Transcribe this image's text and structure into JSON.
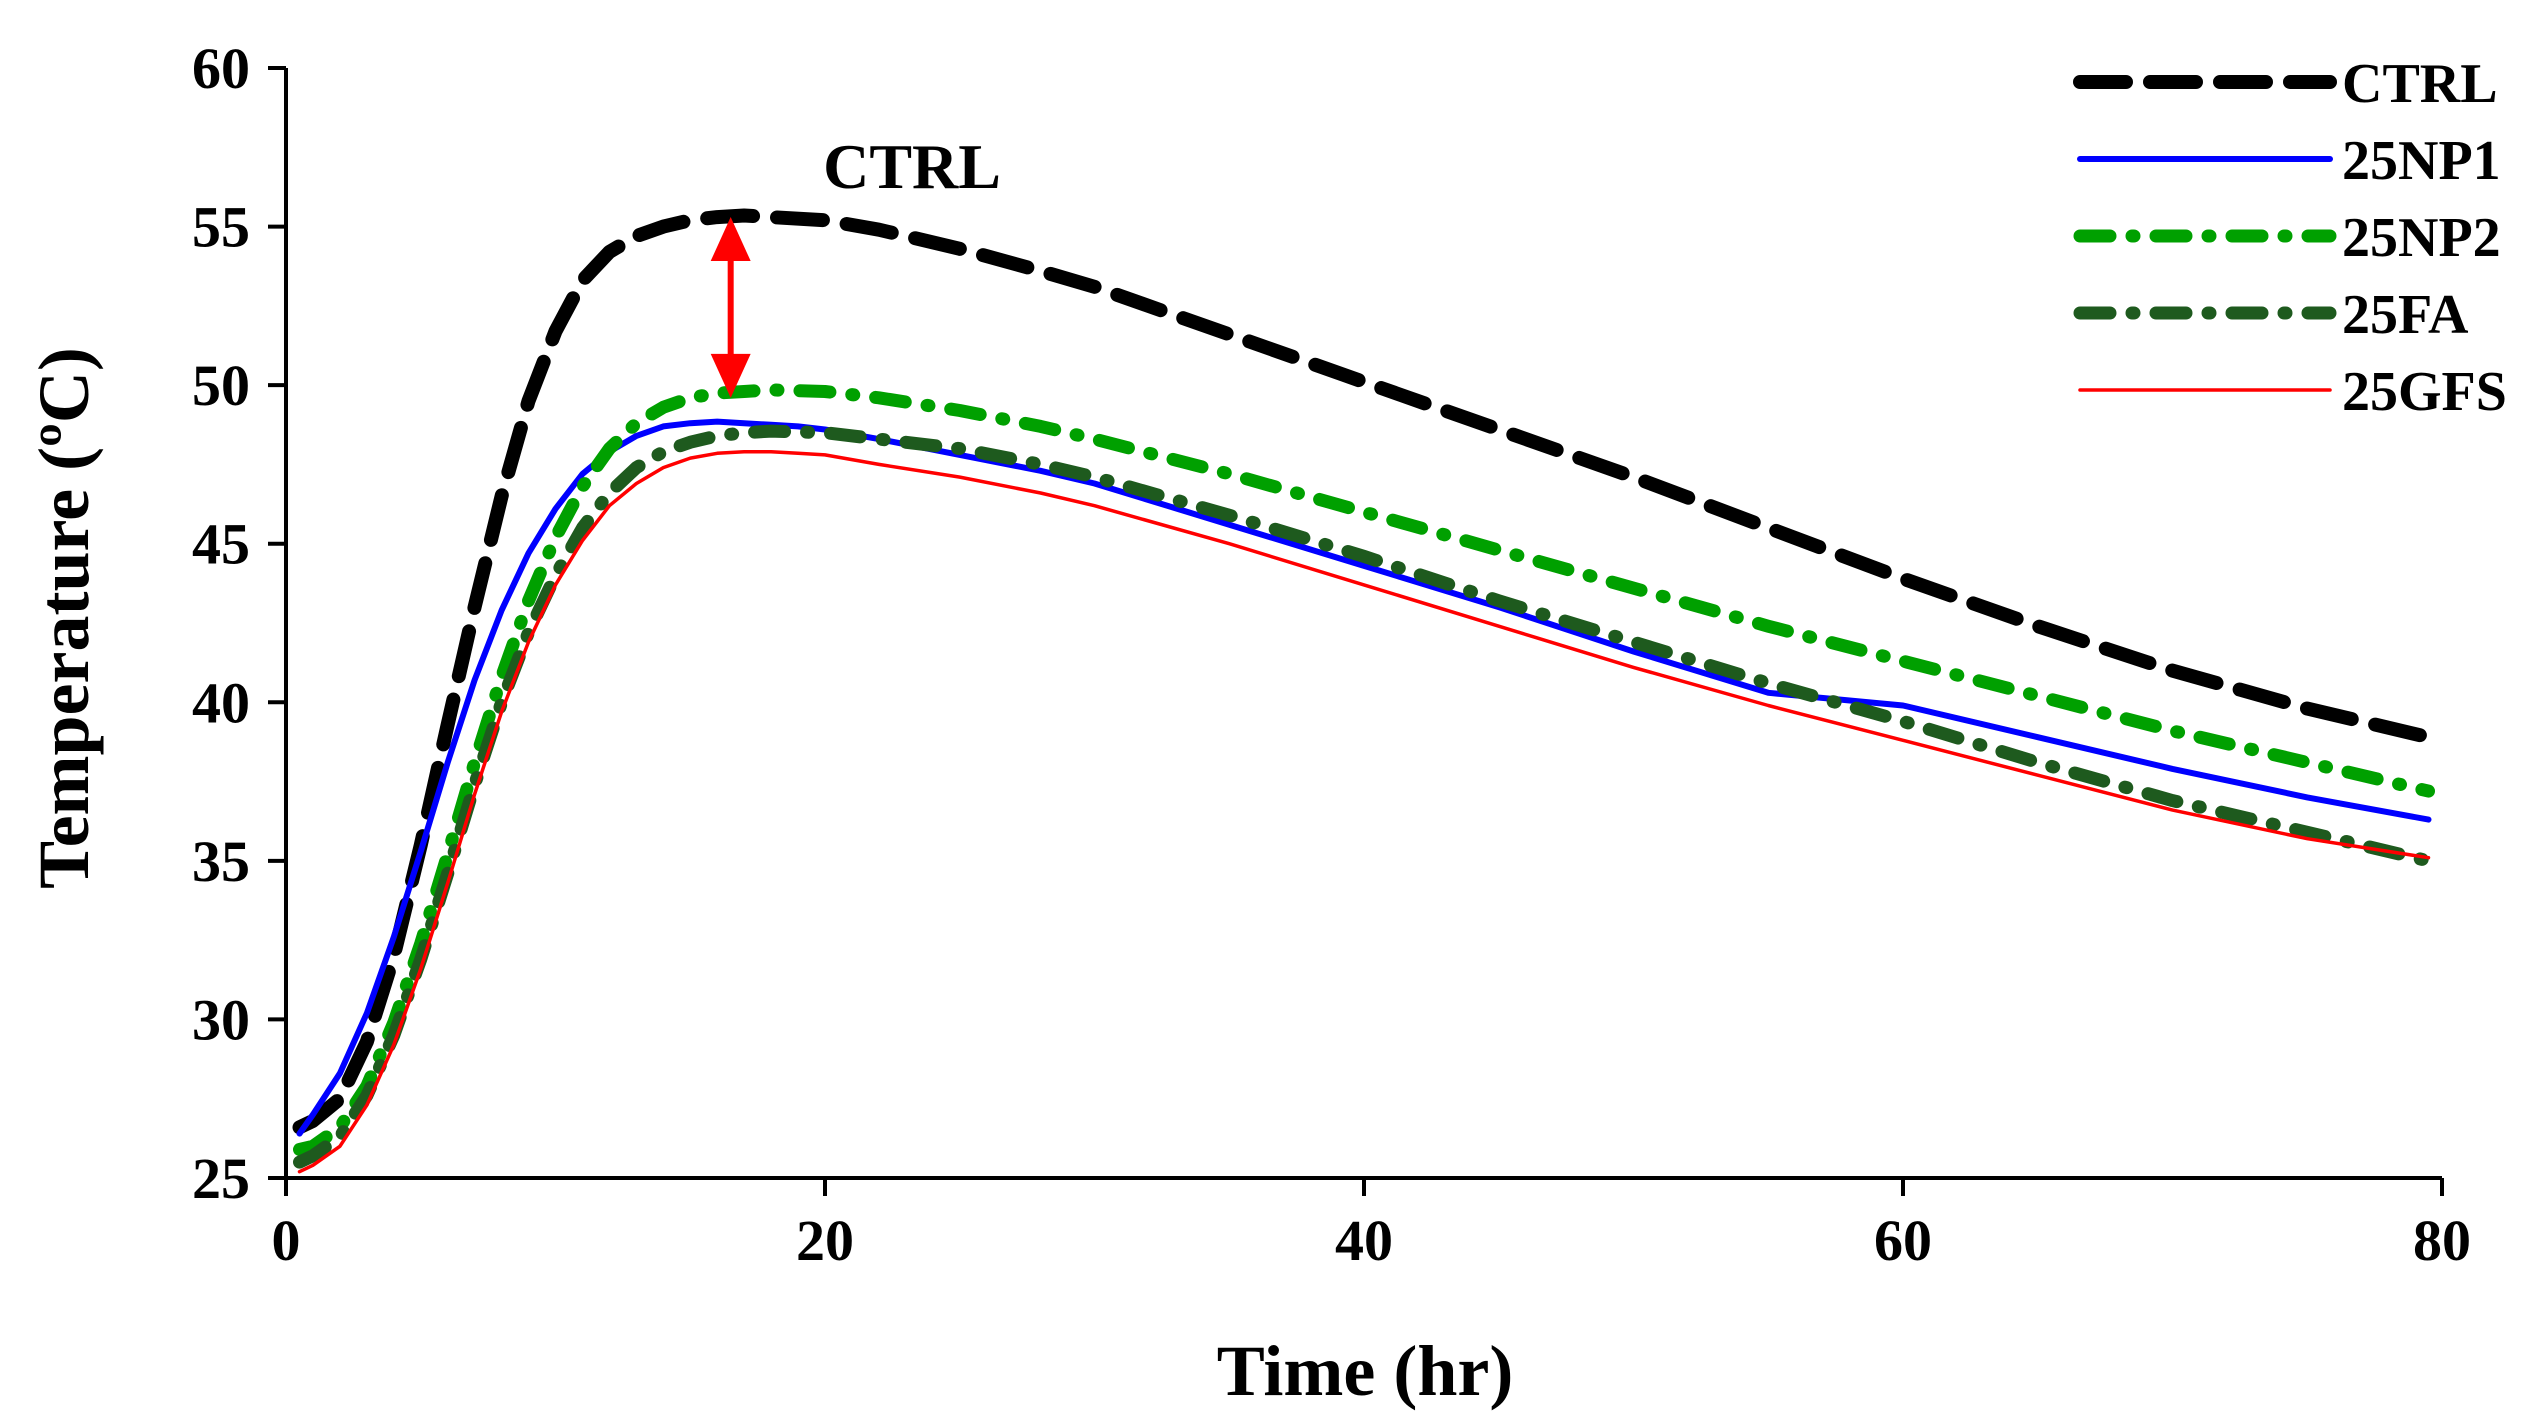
{
  "chart_data": {
    "type": "line",
    "title": "",
    "xlabel": "Time (hr)",
    "ylabel": "Temperature (ºC)",
    "xlim": [
      0,
      80
    ],
    "ylim": [
      25,
      60
    ],
    "xticks": [
      "0",
      "20",
      "40",
      "60",
      "80"
    ],
    "yticks": [
      "25",
      "30",
      "35",
      "40",
      "45",
      "50",
      "55",
      "60"
    ],
    "grid": false,
    "legend_position": "top-right",
    "annotation": {
      "text": "CTRL",
      "arrow_x": 16.5,
      "arrow_from": 55.3,
      "arrow_to": 49.6,
      "color": "#ff0000"
    },
    "series": [
      {
        "name": "CTRL",
        "color": "#000000",
        "style": "dashed",
        "x": [
          0.5,
          1,
          2,
          3,
          4,
          5,
          6,
          7,
          8,
          9,
          10,
          11,
          12,
          13,
          14,
          15,
          16,
          17,
          18,
          20,
          22,
          25,
          28,
          30,
          33,
          35,
          40,
          45,
          50,
          55,
          60,
          65,
          70,
          75,
          79.5
        ],
        "y": [
          26.6,
          26.8,
          27.5,
          29.3,
          32.0,
          35.5,
          39.3,
          43.0,
          46.5,
          49.5,
          51.7,
          53.3,
          54.2,
          54.7,
          55.0,
          55.2,
          55.3,
          55.35,
          55.3,
          55.2,
          54.9,
          54.3,
          53.6,
          53.1,
          52.2,
          51.6,
          50.1,
          48.6,
          47.1,
          45.5,
          43.9,
          42.4,
          41.0,
          39.8,
          38.9
        ]
      },
      {
        "name": "25NP1",
        "color": "#0000ff",
        "style": "solid",
        "x": [
          0.5,
          1,
          2,
          3,
          4,
          5,
          6,
          7,
          8,
          9,
          10,
          11,
          12,
          13,
          14,
          15,
          16,
          17,
          18,
          19,
          20,
          22,
          25,
          28,
          30,
          35,
          40,
          45,
          50,
          55,
          60,
          65,
          70,
          75,
          79.5
        ],
        "y": [
          26.4,
          27.0,
          28.3,
          30.2,
          32.6,
          35.3,
          38.1,
          40.7,
          42.9,
          44.7,
          46.1,
          47.2,
          47.9,
          48.4,
          48.7,
          48.8,
          48.85,
          48.8,
          48.75,
          48.7,
          48.6,
          48.3,
          47.8,
          47.3,
          46.9,
          45.6,
          44.3,
          43.0,
          41.6,
          40.3,
          39.9,
          38.9,
          37.9,
          37.0,
          36.3
        ]
      },
      {
        "name": "25NP2",
        "color": "#00a000",
        "style": "dashdot",
        "x": [
          0.5,
          1,
          2,
          3,
          4,
          5,
          6,
          7,
          8,
          9,
          10,
          11,
          12,
          13,
          14,
          15,
          16,
          17,
          18,
          20,
          22,
          25,
          28,
          30,
          35,
          40,
          45,
          50,
          55,
          60,
          65,
          70,
          75,
          79.5
        ],
        "y": [
          25.9,
          26.0,
          26.6,
          27.9,
          29.9,
          32.4,
          35.2,
          38.1,
          40.8,
          43.2,
          45.2,
          46.8,
          48.0,
          48.8,
          49.3,
          49.6,
          49.75,
          49.8,
          49.85,
          49.8,
          49.6,
          49.2,
          48.7,
          48.3,
          47.2,
          46.0,
          44.8,
          43.6,
          42.4,
          41.3,
          40.2,
          39.1,
          38.1,
          37.2
        ]
      },
      {
        "name": "25FA",
        "color": "#1e5a1e",
        "style": "dashdot",
        "x": [
          0.5,
          1,
          2,
          3,
          4,
          5,
          6,
          7,
          8,
          9,
          10,
          11,
          12,
          13,
          14,
          15,
          16,
          17,
          18,
          20,
          22,
          25,
          28,
          30,
          35,
          40,
          45,
          50,
          55,
          60,
          65,
          70,
          75,
          79.5
        ],
        "y": [
          25.5,
          25.7,
          26.3,
          27.6,
          29.5,
          31.9,
          34.6,
          37.4,
          40.0,
          42.2,
          44.0,
          45.5,
          46.6,
          47.4,
          47.9,
          48.2,
          48.4,
          48.5,
          48.55,
          48.5,
          48.3,
          48.0,
          47.5,
          47.1,
          45.9,
          44.6,
          43.2,
          41.9,
          40.6,
          39.4,
          38.1,
          36.9,
          35.9,
          35.0
        ]
      },
      {
        "name": "25GFS",
        "color": "#ff0000",
        "style": "thin",
        "x": [
          0.5,
          1,
          2,
          3,
          4,
          5,
          6,
          7,
          8,
          9,
          10,
          11,
          12,
          13,
          14,
          15,
          16,
          17,
          18,
          19,
          20,
          22,
          25,
          28,
          30,
          35,
          40,
          45,
          50,
          55,
          60,
          65,
          70,
          75,
          79.5
        ],
        "y": [
          25.2,
          25.4,
          26.0,
          27.3,
          29.2,
          31.6,
          34.3,
          37.1,
          39.7,
          41.9,
          43.7,
          45.1,
          46.2,
          46.9,
          47.4,
          47.7,
          47.85,
          47.9,
          47.9,
          47.85,
          47.8,
          47.5,
          47.1,
          46.6,
          46.2,
          45.0,
          43.7,
          42.4,
          41.1,
          39.9,
          38.8,
          37.7,
          36.6,
          35.7,
          35.1
        ]
      }
    ]
  }
}
